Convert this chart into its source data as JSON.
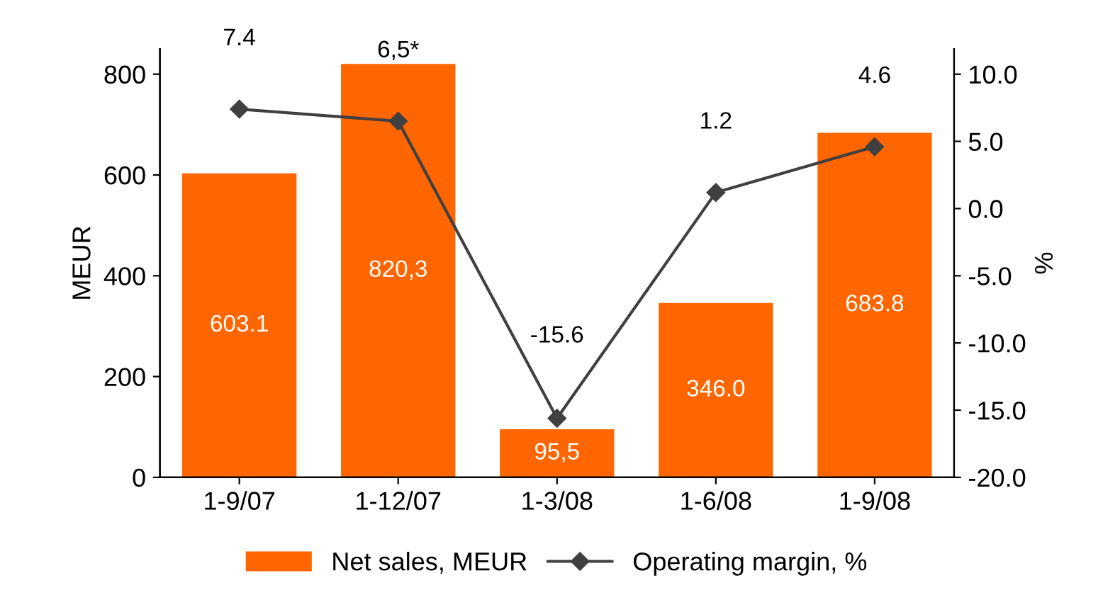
{
  "chart_data": {
    "type": "bar",
    "categories": [
      "1-9/07",
      "1-12/07",
      "1-3/08",
      "1-6/08",
      "1-9/08"
    ],
    "ylabel": "MEUR",
    "y2label": "%",
    "ylim": [
      0,
      850
    ],
    "yticks": [
      0,
      200,
      400,
      600,
      800
    ],
    "y2lim": [
      -20,
      11.875
    ],
    "y2ticks": [
      {
        "value": -20,
        "label": "-20.0"
      },
      {
        "value": -15,
        "label": "-15.0"
      },
      {
        "value": -10,
        "label": "-10.0"
      },
      {
        "value": -5,
        "label": "-5.0"
      },
      {
        "value": 0,
        "label": "0.0"
      },
      {
        "value": 5,
        "label": "5.0"
      },
      {
        "value": 10,
        "label": "10.0"
      }
    ],
    "legend": "bottom",
    "grid": false,
    "series": [
      {
        "name": "Net sales, MEUR",
        "color": "#ff6600",
        "values": [
          603.1,
          820.3,
          95.5,
          346.0,
          683.8
        ],
        "value_labels": [
          "603.1",
          "820,3",
          "95,5",
          "346.0",
          "683.8"
        ]
      },
      {
        "name": "Operating margin, %",
        "type": "line",
        "axis": "y2",
        "color": "#404040",
        "marker": "diamond",
        "line_style": "solid",
        "values": [
          7.4,
          6.5,
          -15.6,
          1.2,
          4.6
        ],
        "value_labels": [
          "7.4",
          "6,5*",
          "-15.6",
          "1.2",
          "4.6"
        ]
      }
    ]
  }
}
